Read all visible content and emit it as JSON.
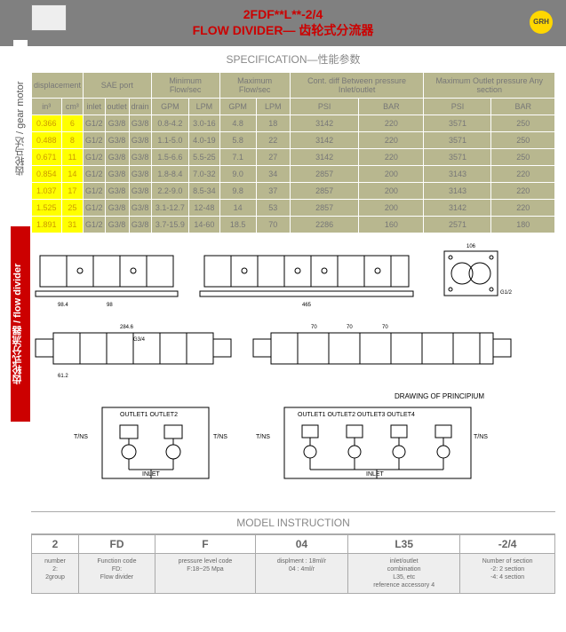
{
  "header": {
    "line1": "2FDF**L**-2/4",
    "line2": "FLOW DIVIDER— 齿轮式分流器",
    "badge": "GRH"
  },
  "sidebar": {
    "gray": "齿轮马达 / gear motor",
    "red": "齿轮式分流器 / flow divider"
  },
  "spec": {
    "title": "SPECIFICATION—性能参数",
    "groups": [
      {
        "label": "displacement",
        "cols": [
          "in³",
          "cm³"
        ]
      },
      {
        "label": "SAE port",
        "cols": [
          "inlet",
          "outlet",
          "drain"
        ]
      },
      {
        "label": "Minimum Flow/sec",
        "cols": [
          "GPM",
          "LPM"
        ]
      },
      {
        "label": "Maximum Flow/sec",
        "cols": [
          "GPM",
          "LPM"
        ]
      },
      {
        "label": "Cont. diff Between pressure Inlet/outlet",
        "cols": [
          "PSI",
          "BAR"
        ]
      },
      {
        "label": "Maximum Outlet pressure Any section",
        "cols": [
          "PSI",
          "BAR"
        ]
      }
    ],
    "rows": [
      [
        "0.366",
        "6",
        "G1/2",
        "G3/8",
        "G3/8",
        "0.8-4.2",
        "3.0-16",
        "4.8",
        "18",
        "3142",
        "220",
        "3571",
        "250"
      ],
      [
        "0.488",
        "8",
        "G1/2",
        "G3/8",
        "G3/8",
        "1.1-5.0",
        "4.0-19",
        "5.8",
        "22",
        "3142",
        "220",
        "3571",
        "250"
      ],
      [
        "0.671",
        "11",
        "G1/2",
        "G3/8",
        "G3/8",
        "1.5-6.6",
        "5.5-25",
        "7.1",
        "27",
        "3142",
        "220",
        "3571",
        "250"
      ],
      [
        "0.854",
        "14",
        "G1/2",
        "G3/8",
        "G3/8",
        "1.8-8.4",
        "7.0-32",
        "9.0",
        "34",
        "2857",
        "200",
        "3143",
        "220"
      ],
      [
        "1.037",
        "17",
        "G1/2",
        "G3/8",
        "G3/8",
        "2.2-9.0",
        "8.5-34",
        "9.8",
        "37",
        "2857",
        "200",
        "3143",
        "220"
      ],
      [
        "1.525",
        "25",
        "G1/2",
        "G3/8",
        "G3/8",
        "3.1-12.7",
        "12-48",
        "14",
        "53",
        "2857",
        "200",
        "3142",
        "220"
      ],
      [
        "1.891",
        "31",
        "G1/2",
        "G3/8",
        "G3/8",
        "3.7-15.9",
        "14-60",
        "18.5",
        "70",
        "2286",
        "160",
        "2571",
        "180"
      ]
    ]
  },
  "model": {
    "title": "MODEL INSTRUCTION",
    "head": [
      "2",
      "FD",
      "F",
      "04",
      "L35",
      "-2/4"
    ],
    "desc": [
      "number\n2:\n2group",
      "Function code\nFD:\nFlow divider",
      "pressure level code\nF:18~25 Mpa",
      "displment : 18ml/r\n04 : 4ml/r",
      "inlet/outlet\ncombination\nL35, etc\nreference accessory 4",
      "Number of section\n-2: 2 section\n-4: 4 section"
    ]
  },
  "diag": {
    "principium": "DRAWING OF PRINCIPIUM",
    "outlet2": "OUTLET1 OUTLET2",
    "outlet4": "OUTLET1 OUTLET2 OUTLET3 OUTLET4",
    "inlet": "INLET",
    "tns": "T/NS",
    "g12": "G1/2",
    "g34": "G3/4",
    "dims": {
      "d984": "98.4",
      "d98": "98",
      "d2846": "284.6",
      "d465": "465",
      "d70": "70",
      "d612": "61.2",
      "d106": "106"
    }
  }
}
